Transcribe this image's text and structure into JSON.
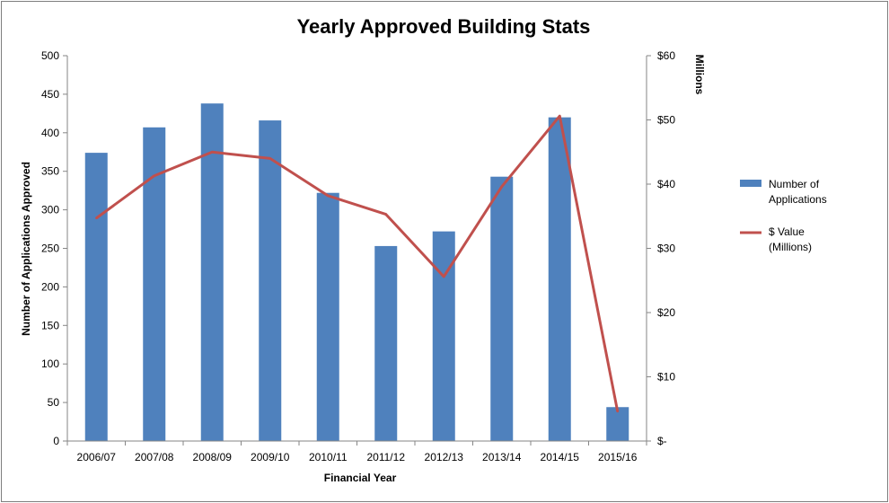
{
  "chart_data": {
    "type": "bar",
    "title": "Yearly Approved Building Stats",
    "xlabel": "Financial Year",
    "ylabel": "Number of Applications Approved",
    "y2label": "Millions",
    "categories": [
      "2006/07",
      "2007/08",
      "2008/09",
      "2009/10",
      "2010/11",
      "2011/12",
      "2012/13",
      "2013/14",
      "2014/15",
      "2015/16"
    ],
    "ylim": [
      0,
      500
    ],
    "yticks": [
      0,
      50,
      100,
      150,
      200,
      250,
      300,
      350,
      400,
      450,
      500
    ],
    "y2lim": [
      0,
      60
    ],
    "y2ticks": [
      0,
      10,
      20,
      30,
      40,
      50,
      60
    ],
    "y2tick_labels": [
      "$-",
      "$10",
      "$20",
      "$30",
      "$40",
      "$50",
      "$60"
    ],
    "grid": false,
    "legend_position": "right",
    "series": [
      {
        "name": "Number of Applications",
        "legend_lines": [
          "Number of",
          "Applications"
        ],
        "type": "bar",
        "axis": "left",
        "color": "#4f81bd",
        "values": [
          374,
          407,
          438,
          416,
          322,
          253,
          272,
          343,
          420,
          44
        ]
      },
      {
        "name": "$ Value (Millions)",
        "legend_lines": [
          "$ Value",
          "(Millions)"
        ],
        "type": "line",
        "axis": "right",
        "color": "#c0504d",
        "values": [
          34.7,
          41.3,
          45.0,
          44.0,
          38.2,
          35.3,
          25.6,
          39.6,
          50.6,
          4.6
        ]
      }
    ]
  }
}
